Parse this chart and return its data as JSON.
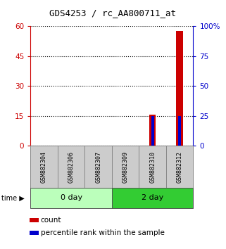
{
  "title": "GDS4253 / rc_AA800711_at",
  "samples": [
    "GSM882304",
    "GSM882306",
    "GSM882307",
    "GSM882309",
    "GSM882310",
    "GSM882312"
  ],
  "groups": [
    {
      "label": "0 day",
      "indices": [
        0,
        1,
        2
      ],
      "color": "#bbffbb"
    },
    {
      "label": "2 day",
      "indices": [
        3,
        4,
        5
      ],
      "color": "#33cc33"
    }
  ],
  "count_values": [
    0,
    0,
    0,
    0,
    15.5,
    57.5
  ],
  "percentile_values": [
    0,
    0,
    0,
    0,
    25,
    25
  ],
  "left_ylim": [
    0,
    60
  ],
  "right_ylim": [
    0,
    100
  ],
  "left_yticks": [
    0,
    15,
    30,
    45,
    60
  ],
  "right_yticks": [
    0,
    25,
    50,
    75,
    100
  ],
  "right_yticklabels": [
    "0",
    "25",
    "50",
    "75",
    "100%"
  ],
  "left_tick_color": "#cc0000",
  "right_tick_color": "#0000cc",
  "count_color": "#cc0000",
  "percentile_color": "#0000cc",
  "sample_box_color": "#cccccc",
  "sample_box_edge_color": "#888888",
  "bg_color": "#ffffff"
}
